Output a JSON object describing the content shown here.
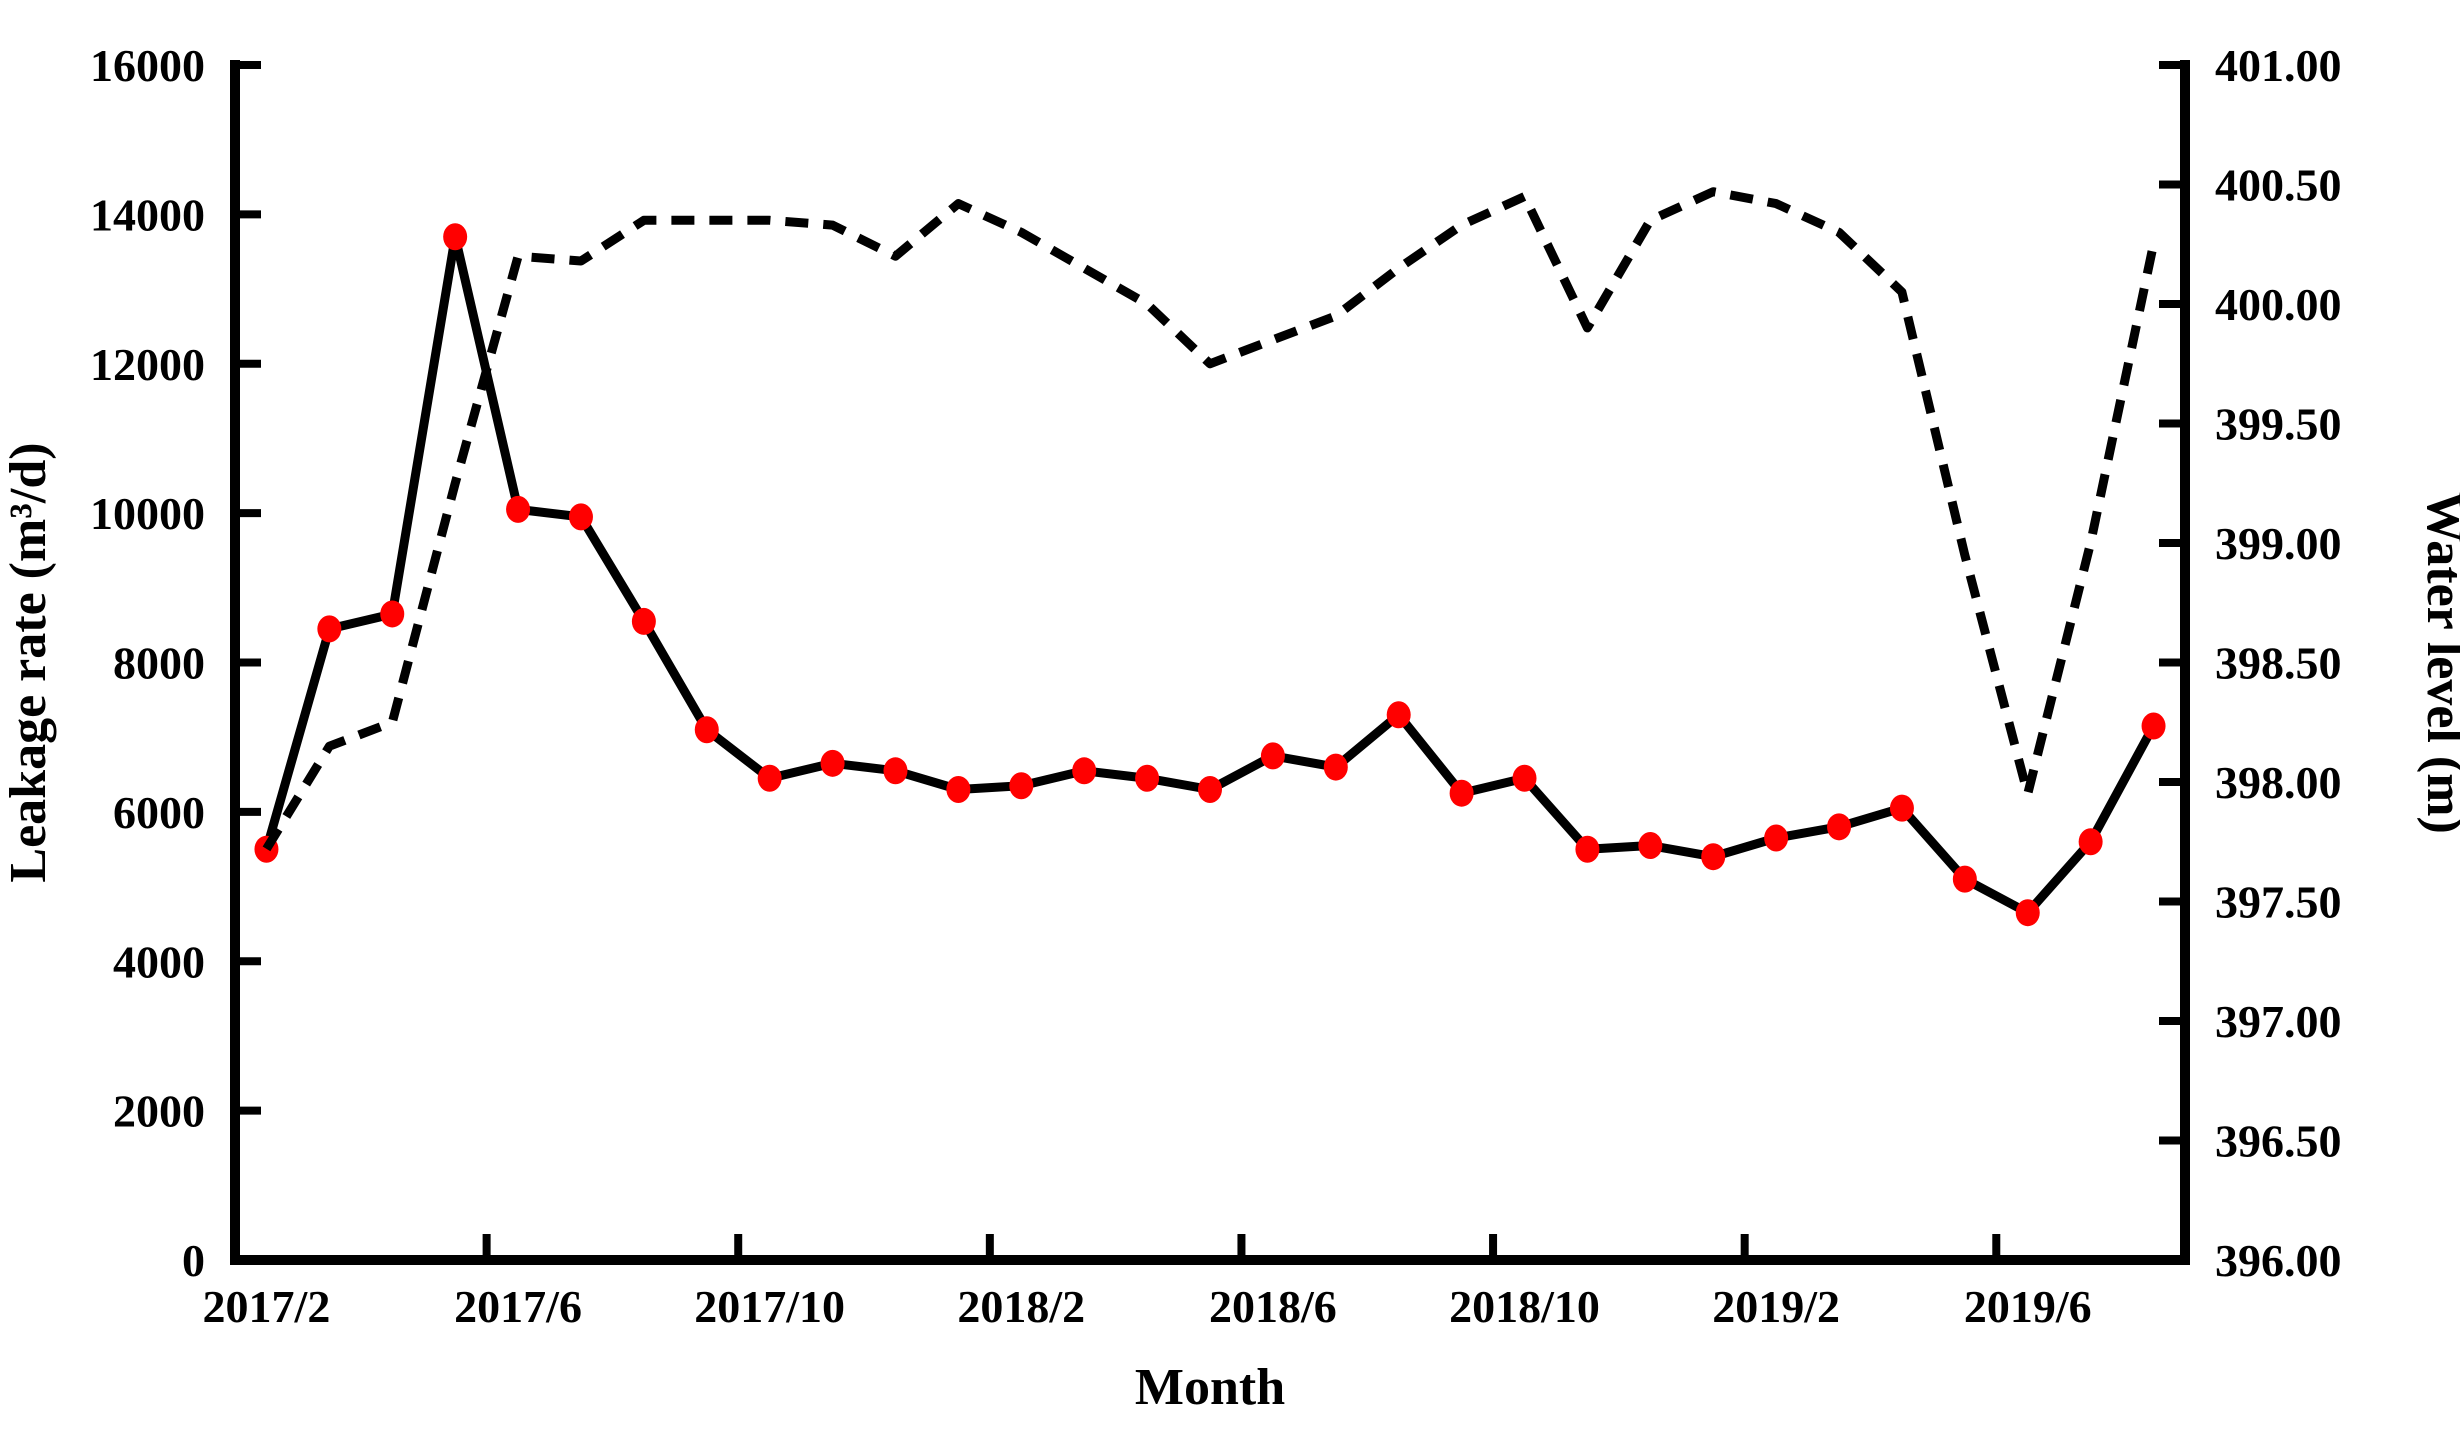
{
  "chart_data": {
    "type": "line",
    "title": "",
    "xlabel": "Month",
    "categories": [
      "2017/2",
      "2017/3",
      "2017/4",
      "2017/5",
      "2017/6",
      "2017/7",
      "2017/8",
      "2017/9",
      "2017/10",
      "2017/11",
      "2017/12",
      "2018/1",
      "2018/2",
      "2018/3",
      "2018/4",
      "2018/5",
      "2018/6",
      "2018/7",
      "2018/8",
      "2018/9",
      "2018/10",
      "2018/11",
      "2018/12",
      "2019/1",
      "2019/2",
      "2019/3",
      "2019/4",
      "2019/5",
      "2019/6",
      "2019/7",
      "2019/8"
    ],
    "x_tick_category_indices": [
      0,
      4,
      8,
      12,
      16,
      20,
      24,
      28
    ],
    "x_tick_labels": [
      "2017/2",
      "2017/6",
      "2017/10",
      "2018/2",
      "2018/6",
      "2018/10",
      "2019/2",
      "2019/6"
    ],
    "series": [
      {
        "name": "Leakage rate",
        "axis": "left",
        "line_style": "solid",
        "line_color": "#000000",
        "marker": "circle",
        "marker_color": "#ff0000",
        "values": [
          5500,
          8450,
          8650,
          13700,
          10050,
          9950,
          8550,
          7100,
          6450,
          6650,
          6550,
          6300,
          6350,
          6550,
          6450,
          6300,
          6750,
          6600,
          7300,
          6250,
          6450,
          5500,
          5550,
          5400,
          5650,
          5800,
          6050,
          5100,
          4650,
          5600,
          7150
        ]
      },
      {
        "name": "Water level",
        "axis": "right",
        "line_style": "dashed",
        "line_color": "#000000",
        "marker": "none",
        "values": [
          397.72,
          398.15,
          398.25,
          399.25,
          400.2,
          400.18,
          400.35,
          400.35,
          400.35,
          400.33,
          400.2,
          400.42,
          400.3,
          400.15,
          400.0,
          399.75,
          399.85,
          399.95,
          400.15,
          400.33,
          400.45,
          399.9,
          400.35,
          400.47,
          400.42,
          400.3,
          400.05,
          398.95,
          397.95,
          399.0,
          400.25
        ]
      }
    ],
    "left_axis": {
      "label": "Leakage rate (m³/d)",
      "min": 0,
      "max": 16000,
      "tick_step": 2000,
      "tick_labels": [
        "0",
        "2000",
        "4000",
        "6000",
        "8000",
        "10000",
        "12000",
        "14000",
        "16000"
      ]
    },
    "right_axis": {
      "label": "Water level (m)",
      "min": 396.0,
      "max": 401.0,
      "tick_step": 0.5,
      "tick_labels": [
        "396.00",
        "396.50",
        "397.00",
        "397.50",
        "398.00",
        "398.50",
        "399.00",
        "399.50",
        "400.00",
        "400.50",
        "401.00"
      ]
    },
    "grid": false,
    "legend_position": "none",
    "background_color": "#ffffff",
    "axis_color": "#000000"
  }
}
